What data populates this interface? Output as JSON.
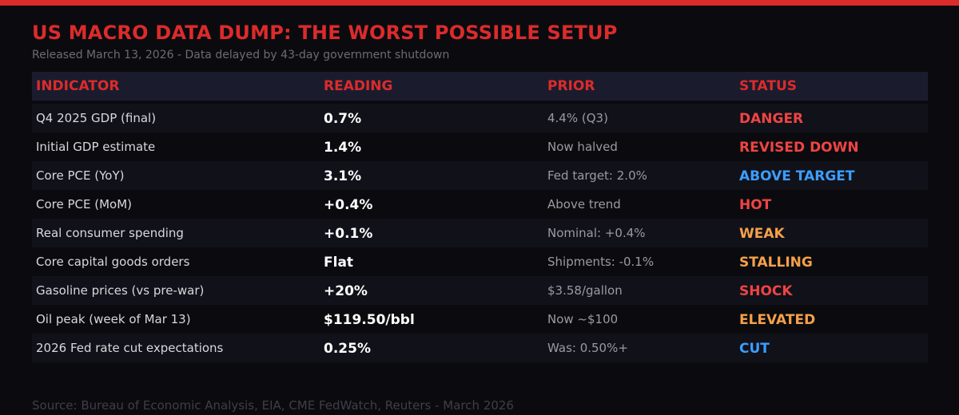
{
  "header": {
    "title": "US MACRO DATA DUMP: THE WORST POSSIBLE SETUP",
    "subtitle": "Released March 13, 2026 - Data delayed by 43-day government shutdown"
  },
  "table": {
    "columns": [
      "INDICATOR",
      "READING",
      "PRIOR",
      "STATUS"
    ],
    "rows": [
      {
        "indicator": "Q4 2025 GDP (final)",
        "reading": "0.7%",
        "prior": "4.4% (Q3)",
        "status": "DANGER",
        "status_color": "#ef4444"
      },
      {
        "indicator": "Initial GDP estimate",
        "reading": "1.4%",
        "prior": "Now halved",
        "status": "REVISED DOWN",
        "status_color": "#ef4444"
      },
      {
        "indicator": "Core PCE (YoY)",
        "reading": "3.1%",
        "prior": "Fed target: 2.0%",
        "status": "ABOVE TARGET",
        "status_color": "#3b9eff"
      },
      {
        "indicator": "Core PCE (MoM)",
        "reading": "+0.4%",
        "prior": "Above trend",
        "status": "HOT",
        "status_color": "#ef4444"
      },
      {
        "indicator": "Real consumer spending",
        "reading": "+0.1%",
        "prior": "Nominal: +0.4%",
        "status": "WEAK",
        "status_color": "#f5a04a"
      },
      {
        "indicator": "Core capital goods orders",
        "reading": "Flat",
        "prior": "Shipments: -0.1%",
        "status": "STALLING",
        "status_color": "#f5a04a"
      },
      {
        "indicator": "Gasoline prices (vs pre-war)",
        "reading": "+20%",
        "prior": "$3.58/gallon",
        "status": "SHOCK",
        "status_color": "#ef4444"
      },
      {
        "indicator": "Oil peak (week of Mar 13)",
        "reading": "$119.50/bbl",
        "prior": "Now ~$100",
        "status": "ELEVATED",
        "status_color": "#f5a04a"
      },
      {
        "indicator": "2026 Fed rate cut expectations",
        "reading": "0.25%",
        "prior": "Was: 0.50%+",
        "status": "CUT",
        "status_color": "#3b9eff"
      }
    ]
  },
  "footer": {
    "source": "Source: Bureau of Economic Analysis, EIA, CME FedWatch, Reuters - March 2026"
  },
  "colors": {
    "accent_red": "#dc2b2b",
    "status_red": "#ef4444",
    "status_orange": "#f5a04a",
    "status_blue": "#3b9eff",
    "background": "#0b0b0f",
    "header_bg": "#1a1c2e"
  }
}
